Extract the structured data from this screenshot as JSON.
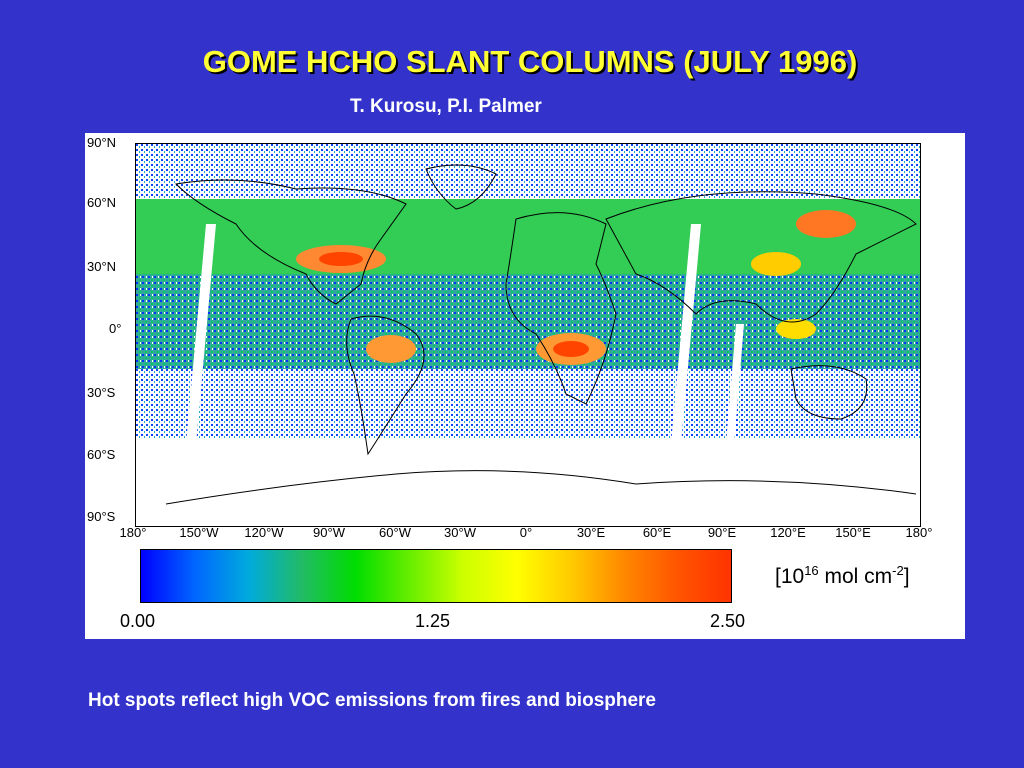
{
  "title": "GOME HCHO SLANT COLUMNS (JULY 1996)",
  "authors": "T. Kurosu, P.I. Palmer",
  "map": {
    "lat_labels": [
      "90°N",
      "60°N",
      "30°N",
      "0°",
      "30°S",
      "60°S",
      "90°S"
    ],
    "lon_labels": [
      "180°",
      "150°W",
      "120°W",
      "90°W",
      "60°W",
      "30°W",
      "0°",
      "30°E",
      "60°E",
      "90°E",
      "120°E",
      "150°E",
      "180°"
    ],
    "hotspots": [
      "eastern North America",
      "central Africa",
      "Amazon basin",
      "East Asia / Siberia"
    ]
  },
  "colorbar": {
    "min_label": "0.00",
    "mid_label": "1.25",
    "max_label": "2.50",
    "unit_base": "[10",
    "unit_exp1": "16",
    "unit_mid": " mol cm",
    "unit_exp2": "-2",
    "unit_end": "]",
    "colors": [
      "#0000ff",
      "#0066ff",
      "#00aadd",
      "#22bb66",
      "#00dd00",
      "#66ee00",
      "#ccff00",
      "#ffff00",
      "#ffcc00",
      "#ff8800",
      "#ff5500",
      "#ff3300"
    ]
  },
  "caption": "Hot spots reflect high VOC emissions from fires and biosphere"
}
